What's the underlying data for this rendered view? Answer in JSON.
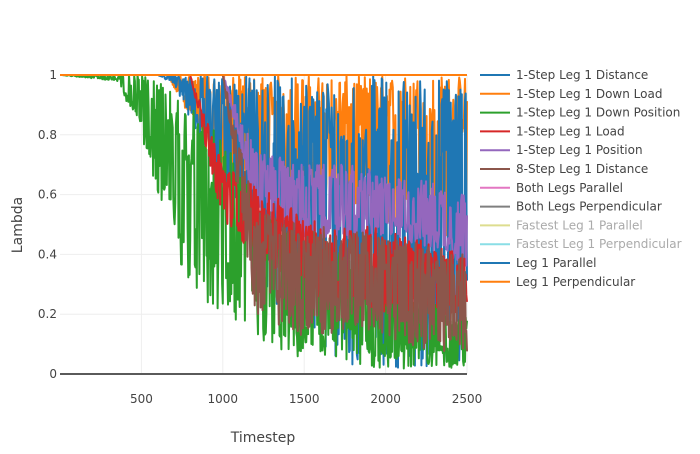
{
  "chart_data": {
    "type": "line",
    "title": "",
    "xlabel": "Timestep",
    "ylabel": "Lambda",
    "xlim": [
      0,
      2500
    ],
    "ylim": [
      0,
      1
    ],
    "xticks": [
      500,
      1000,
      1500,
      2000,
      2500
    ],
    "xtick_labels": [
      "500",
      "1000",
      "1500",
      "2000",
      "2500"
    ],
    "yticks": [
      0,
      0.2,
      0.4,
      0.6,
      0.8,
      1
    ],
    "ytick_labels": [
      "0",
      "0.2",
      "0.4",
      "0.6",
      "0.8",
      "1"
    ],
    "grid": true,
    "legend_position": "right",
    "series": [
      {
        "name": "1-Step Leg 1 Distance",
        "color": "#1f77b4",
        "legend_muted": false,
        "bands": [
          {
            "x": 0,
            "hi": 1,
            "lo": 1
          },
          {
            "x": 600,
            "hi": 1,
            "lo": 1
          },
          {
            "x": 700,
            "hi": 1,
            "lo": 0.97
          },
          {
            "x": 1000,
            "hi": 1,
            "lo": 0.62
          },
          {
            "x": 1300,
            "hi": 1,
            "lo": 0.25
          },
          {
            "x": 1500,
            "hi": 1,
            "lo": 0.1
          },
          {
            "x": 1800,
            "hi": 1,
            "lo": 0.03
          },
          {
            "x": 2100,
            "hi": 1,
            "lo": 0.02
          },
          {
            "x": 2300,
            "hi": 1,
            "lo": 0.01
          },
          {
            "x": 2500,
            "hi": 1,
            "lo": 0.01
          }
        ]
      },
      {
        "name": "1-Step Leg 1 Down Load",
        "color": "#ff7f0e",
        "legend_muted": false,
        "bands": [
          {
            "x": 0,
            "hi": 1,
            "lo": 1
          },
          {
            "x": 650,
            "hi": 1,
            "lo": 1
          },
          {
            "x": 800,
            "hi": 1,
            "lo": 0.86
          },
          {
            "x": 1000,
            "hi": 1,
            "lo": 0.62
          },
          {
            "x": 1200,
            "hi": 1,
            "lo": 0.55
          },
          {
            "x": 1500,
            "hi": 1,
            "lo": 0.6
          },
          {
            "x": 1800,
            "hi": 1,
            "lo": 0.52
          },
          {
            "x": 2100,
            "hi": 1,
            "lo": 0.5
          },
          {
            "x": 2300,
            "hi": 1,
            "lo": 0.45
          },
          {
            "x": 2500,
            "hi": 1,
            "lo": 0.4
          }
        ]
      },
      {
        "name": "1-Step Leg 1 Down Position",
        "color": "#2ca02c",
        "legend_muted": false,
        "bands": [
          {
            "x": 0,
            "hi": 1,
            "lo": 1
          },
          {
            "x": 350,
            "hi": 1,
            "lo": 0.98
          },
          {
            "x": 500,
            "hi": 1,
            "lo": 0.8
          },
          {
            "x": 700,
            "hi": 0.95,
            "lo": 0.4
          },
          {
            "x": 900,
            "hi": 0.85,
            "lo": 0.22
          },
          {
            "x": 1100,
            "hi": 0.7,
            "lo": 0.15
          },
          {
            "x": 1300,
            "hi": 0.55,
            "lo": 0.08
          },
          {
            "x": 1500,
            "hi": 0.45,
            "lo": 0.03
          },
          {
            "x": 1800,
            "hi": 0.4,
            "lo": 0.02
          },
          {
            "x": 2100,
            "hi": 0.3,
            "lo": 0.01
          },
          {
            "x": 2300,
            "hi": 0.25,
            "lo": 0.02
          },
          {
            "x": 2500,
            "hi": 0.2,
            "lo": 0.02
          }
        ]
      },
      {
        "name": "1-Step Leg 1 Load",
        "color": "#d62728",
        "legend_muted": false,
        "bands": [
          {
            "x": 0,
            "hi": 1,
            "lo": 1
          },
          {
            "x": 800,
            "hi": 1,
            "lo": 1
          },
          {
            "x": 1000,
            "hi": 0.7,
            "lo": 0.5
          },
          {
            "x": 1300,
            "hi": 0.6,
            "lo": 0.35
          },
          {
            "x": 1600,
            "hi": 0.5,
            "lo": 0.25
          },
          {
            "x": 1900,
            "hi": 0.5,
            "lo": 0.2
          },
          {
            "x": 2200,
            "hi": 0.45,
            "lo": 0.2
          },
          {
            "x": 2500,
            "hi": 0.4,
            "lo": 0.2
          }
        ]
      },
      {
        "name": "1-Step Leg 1 Position",
        "color": "#9467bd",
        "legend_muted": false,
        "bands": [
          {
            "x": 0,
            "hi": 1,
            "lo": 1
          },
          {
            "x": 1000,
            "hi": 1,
            "lo": 1
          },
          {
            "x": 1200,
            "hi": 0.75,
            "lo": 0.55
          },
          {
            "x": 1500,
            "hi": 0.7,
            "lo": 0.45
          },
          {
            "x": 1800,
            "hi": 0.7,
            "lo": 0.45
          },
          {
            "x": 2100,
            "hi": 0.65,
            "lo": 0.45
          },
          {
            "x": 2300,
            "hi": 0.65,
            "lo": 0.4
          },
          {
            "x": 2500,
            "hi": 0.6,
            "lo": 0.35
          }
        ]
      },
      {
        "name": "8-Step Leg 1 Distance",
        "color": "#8c564b",
        "legend_muted": false,
        "bands": [
          {
            "x": 0,
            "hi": 1,
            "lo": 1
          },
          {
            "x": 1000,
            "hi": 1,
            "lo": 1
          },
          {
            "x": 1200,
            "hi": 0.55,
            "lo": 0.2
          },
          {
            "x": 1500,
            "hi": 0.5,
            "lo": 0.12
          },
          {
            "x": 1800,
            "hi": 0.48,
            "lo": 0.15
          },
          {
            "x": 2100,
            "hi": 0.45,
            "lo": 0.1
          },
          {
            "x": 2300,
            "hi": 0.42,
            "lo": 0.08
          },
          {
            "x": 2500,
            "hi": 0.4,
            "lo": 0.07
          }
        ]
      },
      {
        "name": "Both Legs Parallel",
        "color": "#e377c2",
        "legend_muted": false,
        "bands": [
          {
            "x": 0,
            "hi": 1,
            "lo": 1
          },
          {
            "x": 2500,
            "hi": 1,
            "lo": 1
          }
        ]
      },
      {
        "name": "Both Legs Perpendicular",
        "color": "#7f7f7f",
        "legend_muted": false,
        "bands": [
          {
            "x": 0,
            "hi": 0,
            "lo": 0
          },
          {
            "x": 2500,
            "hi": 0,
            "lo": 0
          }
        ]
      },
      {
        "name": "Fastest Leg 1 Parallel",
        "color": "#bcbd22",
        "legend_muted": true,
        "bands": []
      },
      {
        "name": "Fastest Leg 1 Perpendicular",
        "color": "#17becf",
        "legend_muted": true,
        "bands": []
      },
      {
        "name": "Leg 1 Parallel",
        "color": "#1f77b4",
        "legend_muted": false,
        "bands": [
          {
            "x": 0,
            "hi": 1,
            "lo": 1
          },
          {
            "x": 2500,
            "hi": 1,
            "lo": 1
          }
        ]
      },
      {
        "name": "Leg 1 Perpendicular",
        "color": "#ff7f0e",
        "legend_muted": false,
        "bands": [
          {
            "x": 0,
            "hi": 1,
            "lo": 1
          },
          {
            "x": 2500,
            "hi": 1,
            "lo": 1
          }
        ]
      }
    ]
  }
}
